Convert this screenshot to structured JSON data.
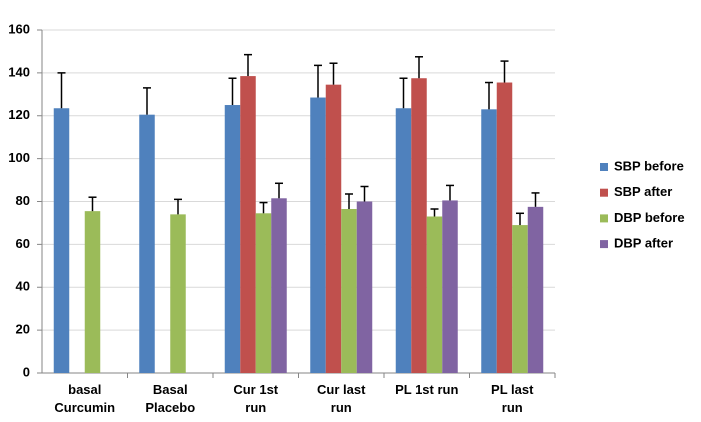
{
  "chart_data": {
    "type": "bar",
    "categories": [
      "basal Curcumin",
      "Basal Placebo",
      "Cur 1st run",
      "Cur last run",
      "PL 1st run",
      "PL last run"
    ],
    "series": [
      {
        "name": "SBP before",
        "color": "#4f81bd",
        "values": [
          123.5,
          120.5,
          125,
          128.5,
          123.5,
          123
        ],
        "errors": [
          16.5,
          12.5,
          12.5,
          15,
          14,
          12.5
        ]
      },
      {
        "name": "SBP after",
        "color": "#c0504d",
        "values": [
          null,
          null,
          138.5,
          134.5,
          137.5,
          135.5
        ],
        "errors": [
          null,
          null,
          10,
          10,
          10,
          10
        ]
      },
      {
        "name": "DBP before",
        "color": "#9bbb59",
        "values": [
          75.5,
          74,
          74.5,
          76.5,
          73,
          69
        ],
        "errors": [
          6.5,
          7,
          5,
          7,
          3.5,
          5.5
        ]
      },
      {
        "name": "DBP after",
        "color": "#8064a2",
        "values": [
          null,
          null,
          81.5,
          80,
          80.5,
          77.5
        ],
        "errors": [
          null,
          null,
          7,
          7,
          7,
          6.5
        ]
      }
    ],
    "ylim": [
      0,
      160
    ],
    "yticks": [
      0,
      20,
      40,
      60,
      80,
      100,
      120,
      140,
      160
    ],
    "grid": true,
    "legend": "right"
  }
}
